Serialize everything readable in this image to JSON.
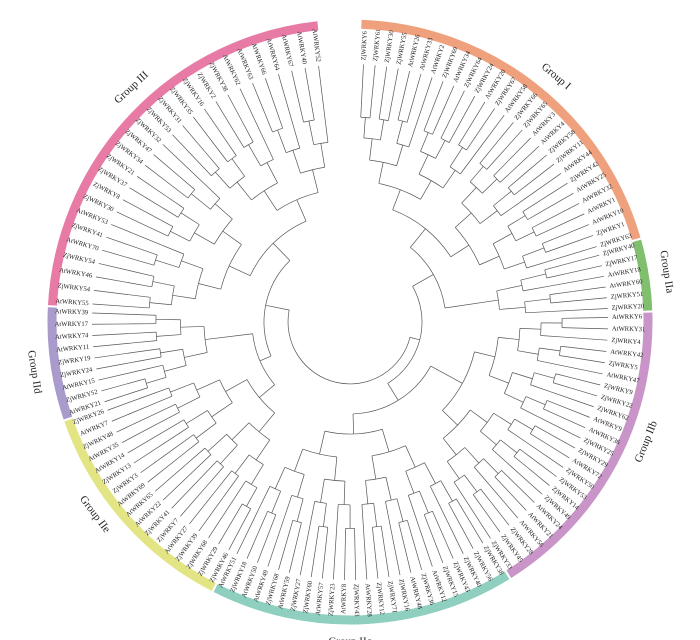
{
  "groups": [
    {
      "label": "Group I",
      "color": "#EFA17D",
      "leaves": [
        "ZjWRKY6",
        "ZjWRKY61",
        "ZjWRKY30",
        "ZjWRKY55",
        "AtWRKY26",
        "AtWRKY33",
        "AtWRKY2",
        "ZjWRKY69",
        "AtWRKY34",
        "ZjWRKY64",
        "ZjWRKY24",
        "AtWRKY20",
        "ZjWRKY67",
        "AtWRKY58",
        "ZjWRKY66",
        "ZjWRKY65",
        "AtWRKY3",
        "AtWRKY4",
        "ZjWRKY58",
        "ZjWRKY11",
        "AtWRKY44",
        "ZjWRKY42",
        "AtWRKY25",
        "AtWRKY32",
        "AtWRKY1",
        "AtWRKY10",
        "ZjWRKY1",
        "ZjWRKY63"
      ]
    },
    {
      "label": "Group IIa",
      "color": "#7FBF6E",
      "leaves": [
        "ZjWRKY40",
        "ZjWRKY17",
        "AtWRKY18",
        "AtWRKY60",
        "ZjWRKY51",
        "ZjWRKY20"
      ]
    },
    {
      "label": "Group IIb",
      "color": "#C994C7",
      "leaves": [
        "AtWRKY6",
        "AtWRKY31",
        "ZjWRKY4",
        "AtWRKY42",
        "ZjWRKY5",
        "AtWRKY47",
        "ZjWRKY9",
        "ZjWRKY22",
        "ZjWRKY62",
        "AtWRKY9",
        "AtWRKY36",
        "ZjWRKY25",
        "ZjWRKY29",
        "AtWRKY72",
        "ZjWRKY50",
        "ZjWRKY53",
        "ZjWRKY14",
        "ZjWRKY49",
        "AtWRKY24",
        "AtWRKY21",
        "AtWRKY56",
        "ZjWRKY28",
        "ZjWRKY45",
        "ZjWRKY33"
      ]
    },
    {
      "label": "Group IIc",
      "color": "#8ECFC0",
      "leaves": [
        "ZjWRKY38",
        "ZjWRKY56",
        "ZjWRKY40",
        "ZjWRKY43",
        "ZjWRKY15",
        "AtWRKY12",
        "ZjWRKY36",
        "AtWRKY48",
        "ZjWRKY16",
        "ZjWRKY71",
        "ZjWRKY12",
        "AtWRKY28",
        "ZjWRKY43",
        "AtWRKY8",
        "ZjWRKY23",
        "AtWRKY57",
        "ZjWRKY60",
        "ZjWRKY27",
        "AtWRKY59",
        "ZjWRKY68",
        "AtWRKY49",
        "AtWRKY50",
        "ZjWRKY18",
        "AtWRKY51"
      ]
    },
    {
      "label": "Group IIe",
      "color": "#E3E585",
      "leaves": [
        "ZjWRKY46",
        "ZjWRKY29",
        "ZjWRKY68",
        "ZjWRKY39",
        "AtWRKY27",
        "ZjWRKY7",
        "ZjWRKY41",
        "AtWRKY22",
        "AtWRKY65",
        "AtWRKY69",
        "ZjWRKY3",
        "ZjWRKY13",
        "AtWRKY14",
        "AtWRKY35",
        "ZjWRKY48",
        "AtWRKY7",
        "ZjWRKY26"
      ]
    },
    {
      "label": "Group IId",
      "color": "#A99BCB",
      "leaves": [
        "AtWRKY21",
        "ZjWRKY52",
        "AtWRKY15",
        "ZjWRKY24",
        "ZjWRKY19",
        "AtWRKY11",
        "AtWRKY74",
        "AtWRKY17",
        "AtWRKY39"
      ]
    },
    {
      "label": "Group III",
      "color": "#E87BA5",
      "leaves": [
        "AtWRKY55",
        "ZjWRKY54",
        "AtWRKY46",
        "ZjWRKY54",
        "AtWRKY70",
        "ZjWRKY41",
        "AtWRKY53",
        "ZjWRKY30",
        "ZjWRKY8",
        "ZjWRKY37",
        "ZjWRKY21",
        "ZjWRKY34",
        "ZjWRKY47",
        "ZjWRKY32",
        "ZjWRKY53",
        "ZjWRKY31",
        "ZjWRKY35",
        "ZjWRKY16",
        "ZjWRKY2",
        "ZjWRKY38",
        "AtWRKY62",
        "AtWRKY63",
        "AtWRKY66",
        "AtWRKY64",
        "AtWRKY67",
        "AtWRKY40",
        "AtWRKY52"
      ]
    }
  ]
}
